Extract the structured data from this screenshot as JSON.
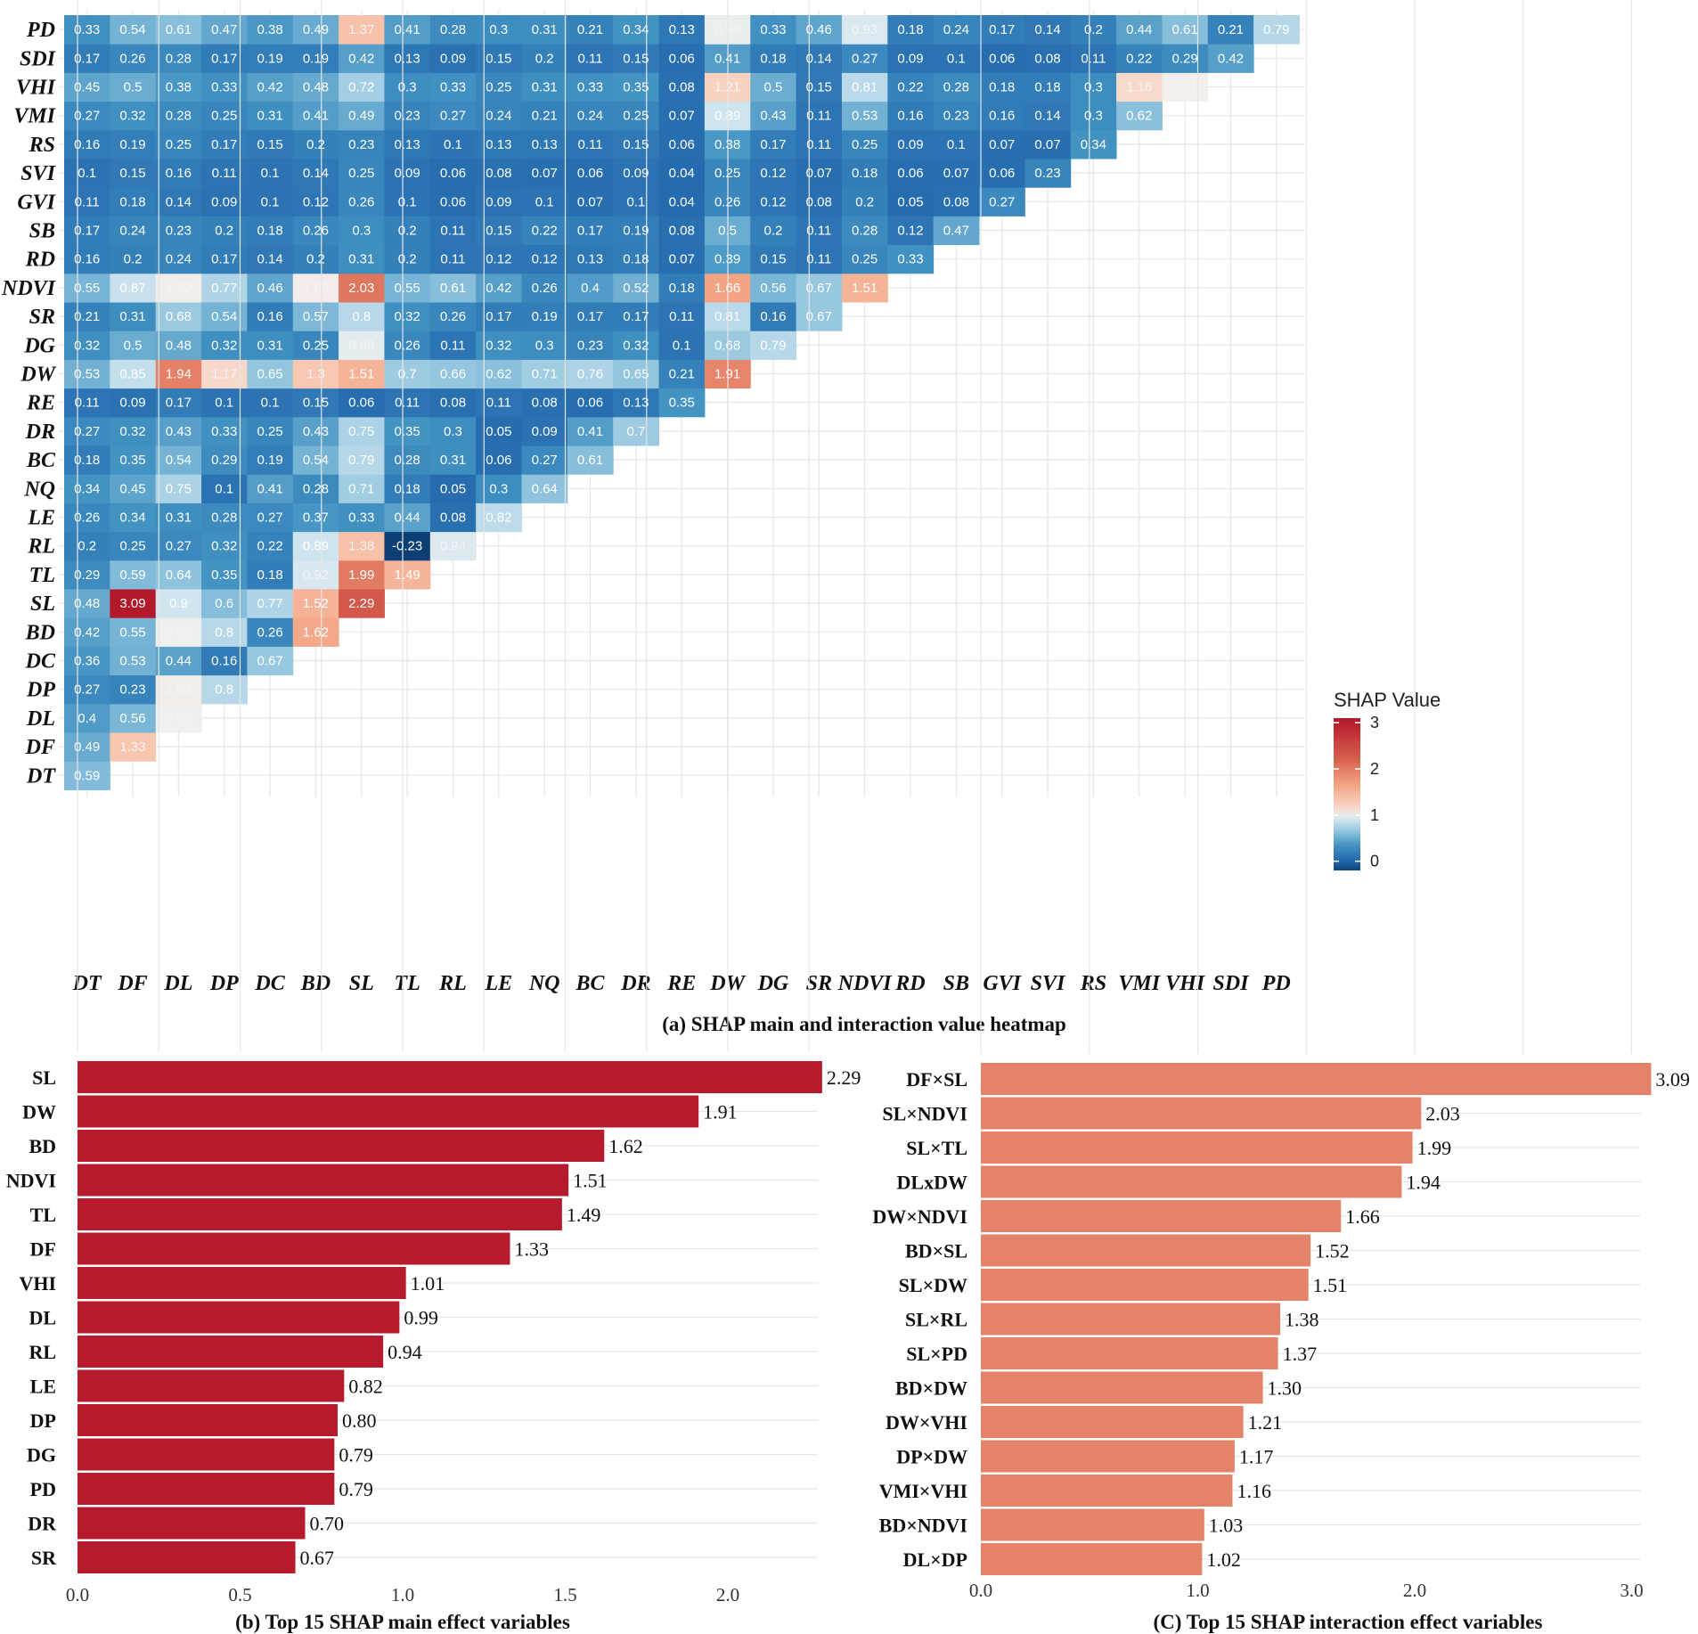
{
  "chart_data": [
    {
      "type": "heatmap",
      "title": "(a) SHAP main and interaction value heatmap",
      "variables": [
        "DT",
        "DF",
        "DL",
        "DP",
        "DC",
        "BD",
        "SL",
        "TL",
        "RL",
        "LE",
        "NQ",
        "BC",
        "DR",
        "RE",
        "DW",
        "DG",
        "SR",
        "NDVI",
        "RD",
        "SB",
        "GVI",
        "SVI",
        "RS",
        "VMI",
        "VHI",
        "SDI",
        "PD"
      ],
      "rows": [
        [
          0.59
        ],
        [
          0.49,
          1.33
        ],
        [
          0.4,
          0.56,
          0.99
        ],
        [
          0.27,
          0.23,
          1.02,
          0.8
        ],
        [
          0.36,
          0.53,
          0.44,
          0.16,
          0.67
        ],
        [
          0.42,
          0.55,
          0.99,
          0.8,
          0.26,
          1.62
        ],
        [
          0.48,
          3.09,
          0.9,
          0.6,
          0.77,
          1.52,
          2.29
        ],
        [
          0.29,
          0.59,
          0.64,
          0.35,
          0.18,
          0.92,
          1.99,
          1.49
        ],
        [
          0.2,
          0.25,
          0.27,
          0.32,
          0.22,
          0.89,
          1.38,
          -0.23,
          0.94
        ],
        [
          0.26,
          0.34,
          0.31,
          0.28,
          0.27,
          0.37,
          0.33,
          0.44,
          0.08,
          0.82
        ],
        [
          0.34,
          0.45,
          0.75,
          0.1,
          0.41,
          0.28,
          0.71,
          0.18,
          0.05,
          0.3,
          0.64
        ],
        [
          0.18,
          0.35,
          0.54,
          0.29,
          0.19,
          0.54,
          0.79,
          0.28,
          0.31,
          0.06,
          0.27,
          0.61
        ],
        [
          0.27,
          0.32,
          0.43,
          0.33,
          0.25,
          0.43,
          0.75,
          0.35,
          0.3,
          0.05,
          0.09,
          0.41,
          0.7
        ],
        [
          0.11,
          0.09,
          0.17,
          0.1,
          0.1,
          0.15,
          0.06,
          0.11,
          0.08,
          0.11,
          0.08,
          0.06,
          0.13,
          0.35
        ],
        [
          0.53,
          0.85,
          1.94,
          1.17,
          0.65,
          1.3,
          1.51,
          0.7,
          0.66,
          0.62,
          0.71,
          0.76,
          0.65,
          0.21,
          1.91
        ],
        [
          0.32,
          0.5,
          0.48,
          0.32,
          0.31,
          0.25,
          0.96,
          0.26,
          0.11,
          0.32,
          0.3,
          0.23,
          0.32,
          0.1,
          0.68,
          0.79
        ],
        [
          0.21,
          0.31,
          0.68,
          0.54,
          0.16,
          0.57,
          0.8,
          0.32,
          0.26,
          0.17,
          0.19,
          0.17,
          0.17,
          0.11,
          0.81,
          0.16,
          0.67
        ],
        [
          0.55,
          0.87,
          1.02,
          0.77,
          0.46,
          1.03,
          2.03,
          0.55,
          0.61,
          0.42,
          0.26,
          0.4,
          0.52,
          0.18,
          1.66,
          0.56,
          0.67,
          1.51
        ],
        [
          0.16,
          0.2,
          0.24,
          0.17,
          0.14,
          0.2,
          0.31,
          0.2,
          0.11,
          0.12,
          0.12,
          0.13,
          0.18,
          0.07,
          0.39,
          0.15,
          0.11,
          0.25,
          0.33
        ],
        [
          0.17,
          0.24,
          0.23,
          0.2,
          0.18,
          0.26,
          0.3,
          0.2,
          0.11,
          0.15,
          0.22,
          0.17,
          0.19,
          0.08,
          0.5,
          0.2,
          0.11,
          0.28,
          0.12,
          0.47
        ],
        [
          0.11,
          0.18,
          0.14,
          0.09,
          0.1,
          0.12,
          0.26,
          0.1,
          0.06,
          0.09,
          0.1,
          0.07,
          0.1,
          0.04,
          0.26,
          0.12,
          0.08,
          0.2,
          0.05,
          0.08,
          0.27
        ],
        [
          0.1,
          0.15,
          0.16,
          0.11,
          0.1,
          0.14,
          0.25,
          0.09,
          0.06,
          0.08,
          0.07,
          0.06,
          0.09,
          0.04,
          0.25,
          0.12,
          0.07,
          0.18,
          0.06,
          0.07,
          0.06,
          0.23
        ],
        [
          0.16,
          0.19,
          0.25,
          0.17,
          0.15,
          0.2,
          0.23,
          0.13,
          0.1,
          0.13,
          0.13,
          0.11,
          0.15,
          0.06,
          0.38,
          0.17,
          0.11,
          0.25,
          0.09,
          0.1,
          0.07,
          0.07,
          0.34
        ],
        [
          0.27,
          0.32,
          0.28,
          0.25,
          0.31,
          0.41,
          0.49,
          0.23,
          0.27,
          0.24,
          0.21,
          0.24,
          0.25,
          0.07,
          0.89,
          0.43,
          0.11,
          0.53,
          0.16,
          0.23,
          0.16,
          0.14,
          0.3,
          0.62
        ],
        [
          0.45,
          0.5,
          0.38,
          0.33,
          0.42,
          0.48,
          0.72,
          0.3,
          0.33,
          0.25,
          0.31,
          0.33,
          0.35,
          0.08,
          1.21,
          0.5,
          0.15,
          0.81,
          0.22,
          0.28,
          0.18,
          0.18,
          0.3,
          1.16,
          1.01
        ],
        [
          0.17,
          0.26,
          0.28,
          0.17,
          0.19,
          0.19,
          0.42,
          0.13,
          0.09,
          0.15,
          0.2,
          0.11,
          0.15,
          0.06,
          0.41,
          0.18,
          0.14,
          0.27,
          0.09,
          0.1,
          0.06,
          0.08,
          0.11,
          0.22,
          0.29,
          0.42
        ],
        [
          0.33,
          0.54,
          0.61,
          0.47,
          0.38,
          0.49,
          1.37,
          0.41,
          0.28,
          0.3,
          0.31,
          0.21,
          0.34,
          0.13,
          0.98,
          0.33,
          0.46,
          0.93,
          0.18,
          0.24,
          0.17,
          0.14,
          0.2,
          0.44,
          0.61,
          0.21,
          0.79
        ]
      ],
      "legend": {
        "title": "SHAP Value",
        "ticks": [
          3,
          2,
          1,
          0
        ],
        "placement": "right",
        "colors": [
          "#2166ac",
          "#4393c3",
          "#92c5de",
          "#d1e5f0",
          "#f7f7f7",
          "#fddbc7",
          "#f4a582",
          "#d6604d",
          "#b2182b"
        ]
      },
      "range": [
        -0.23,
        3.09
      ]
    },
    {
      "type": "bar",
      "orientation": "horizontal",
      "title": "(b) Top 15 SHAP main effect variables",
      "categories": [
        "SL",
        "DW",
        "BD",
        "NDVI",
        "TL",
        "DF",
        "VHI",
        "DL",
        "RL",
        "LE",
        "DP",
        "DG",
        "PD",
        "DR",
        "SR"
      ],
      "values": [
        2.29,
        1.91,
        1.62,
        1.51,
        1.49,
        1.33,
        1.01,
        0.99,
        0.94,
        0.82,
        0.8,
        0.79,
        0.79,
        0.7,
        0.67
      ],
      "labels": [
        "2.29",
        "1.91",
        "1.62",
        "1.51",
        "1.49",
        "1.33",
        "1.01",
        "0.99",
        "0.94",
        "0.82",
        "0.80",
        "0.79",
        "0.79",
        "0.70",
        "0.67"
      ],
      "xlim": [
        0,
        2.29
      ],
      "xticks": [
        "0.0",
        "0.5",
        "1.0",
        "1.5",
        "2.0"
      ],
      "color": "#b61b2d"
    },
    {
      "type": "bar",
      "orientation": "horizontal",
      "title": "(C) Top 15 SHAP interaction effect variables",
      "categories": [
        "DF×SL",
        "SL×NDVI",
        "SL×TL",
        "DLxDW",
        "DW×NDVI",
        "BD×SL",
        "SL×DW",
        "SL×RL",
        "SL×PD",
        "BD×DW",
        "DW×VHI",
        "DP×DW",
        "VMI×VHI",
        "BD×NDVI",
        "DL×DP"
      ],
      "values": [
        3.09,
        2.03,
        1.99,
        1.94,
        1.66,
        1.52,
        1.51,
        1.38,
        1.37,
        1.3,
        1.21,
        1.17,
        1.16,
        1.03,
        1.02
      ],
      "labels": [
        "3.09",
        "2.03",
        "1.99",
        "1.94",
        "1.66",
        "1.52",
        "1.51",
        "1.38",
        "1.37",
        "1.30",
        "1.21",
        "1.17",
        "1.16",
        "1.03",
        "1.02"
      ],
      "xlim": [
        0,
        3.09
      ],
      "xticks": [
        "0.0",
        "1.0",
        "2.0",
        "3.0"
      ],
      "color": "#e5826a"
    }
  ]
}
